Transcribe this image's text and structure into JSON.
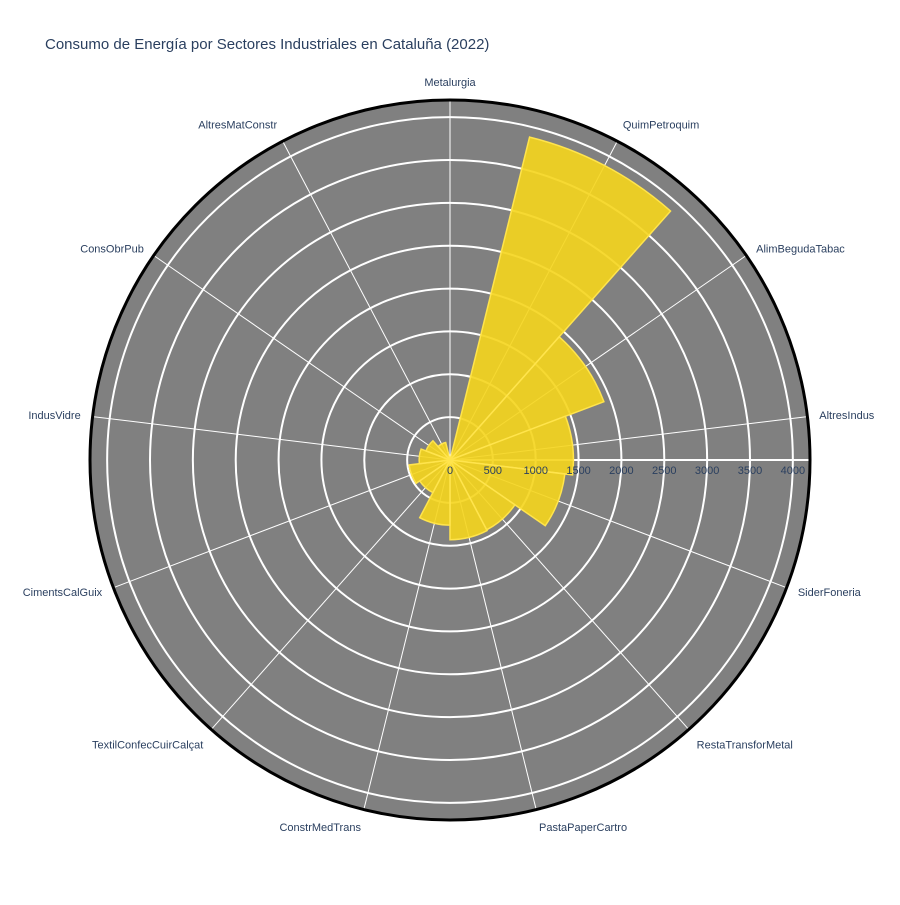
{
  "chart_data": {
    "type": "barpolar",
    "title": "Consumo de Energía por Sectores Industriales en Cataluña (2022)",
    "categories": [
      "Metalurgia",
      "QuimPetroquim",
      "AlimBegudaTabac",
      "AltresIndus",
      "SiderFoneria",
      "RestaTransforMetal",
      "PastaPaperCartro",
      "ConstrMedTrans",
      "TextilConfecCuirCalçat",
      "CimentsCalGuix",
      "IndusVidre",
      "ConsObrPub",
      "AltresMatConstr"
    ],
    "values": [
      20,
      3880,
      1920,
      1440,
      1350,
      920,
      930,
      760,
      430,
      480,
      360,
      300,
      210
    ],
    "radial_ticks": [
      0,
      500,
      1000,
      1500,
      2000,
      2500,
      3000,
      3500,
      4000
    ],
    "radial_range": [
      0,
      4200
    ],
    "direction": "clockwise",
    "rotation_start": "top",
    "grid": true,
    "colors": {
      "bar_fill": "#f5d51c",
      "bar_stroke": "#ffe44d",
      "background": "#808080",
      "grid": "#ffffff",
      "outline": "#000000",
      "text": "#2a3f5f"
    }
  }
}
